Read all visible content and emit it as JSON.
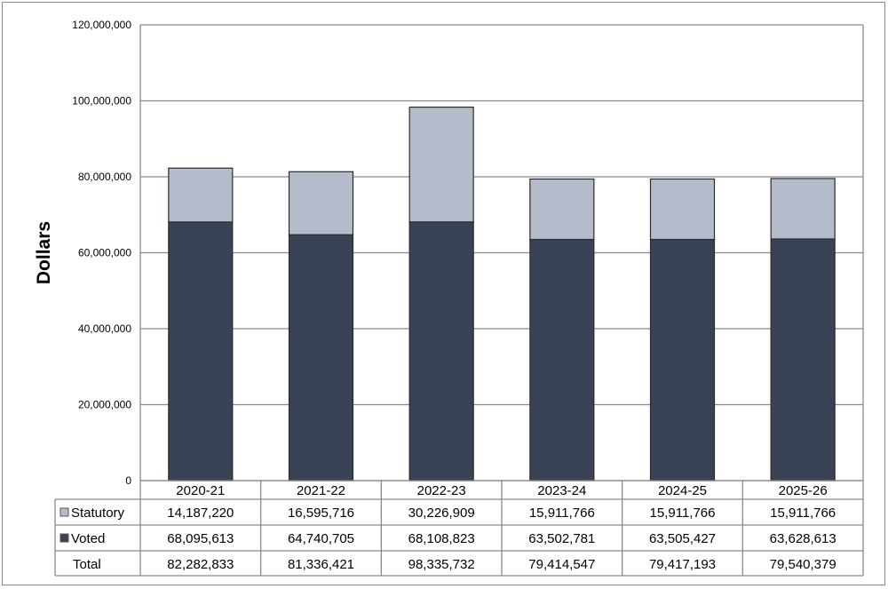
{
  "chart_data": {
    "type": "bar",
    "stacked": true,
    "ylabel": "Dollars",
    "xlabel": "",
    "ylim": [
      0,
      120000000
    ],
    "yticks": [
      0,
      20000000,
      40000000,
      60000000,
      80000000,
      100000000,
      120000000
    ],
    "ytick_labels": [
      "0",
      "20,000,000",
      "40,000,000",
      "60,000,000",
      "80,000,000",
      "100,000,000",
      "120,000,000"
    ],
    "grid": "horizontal",
    "categories": [
      "2020-21",
      "2021-22",
      "2022-23",
      "2023-24",
      "2024-25",
      "2025-26"
    ],
    "series": [
      {
        "name": "Voted",
        "color": "#3a4356",
        "values": [
          68095613,
          64740705,
          68108823,
          63502781,
          63505427,
          63628613
        ],
        "labels": [
          "68,095,613",
          "64,740,705",
          "68,108,823",
          "63,502,781",
          "63,505,427",
          "63,628,613"
        ]
      },
      {
        "name": "Statutory",
        "color": "#b4bccc",
        "values": [
          14187220,
          16595716,
          30226909,
          15911766,
          15911766,
          15911766
        ],
        "labels": [
          "14,187,220",
          "16,595,716",
          "30,226,909",
          "15,911,766",
          "15,911,766",
          "15,911,766"
        ]
      }
    ],
    "total": {
      "name": "Total",
      "labels": [
        "82,282,833",
        "81,336,421",
        "98,335,732",
        "79,414,547",
        "79,417,193",
        "79,540,379"
      ]
    },
    "legend": "data-table"
  }
}
